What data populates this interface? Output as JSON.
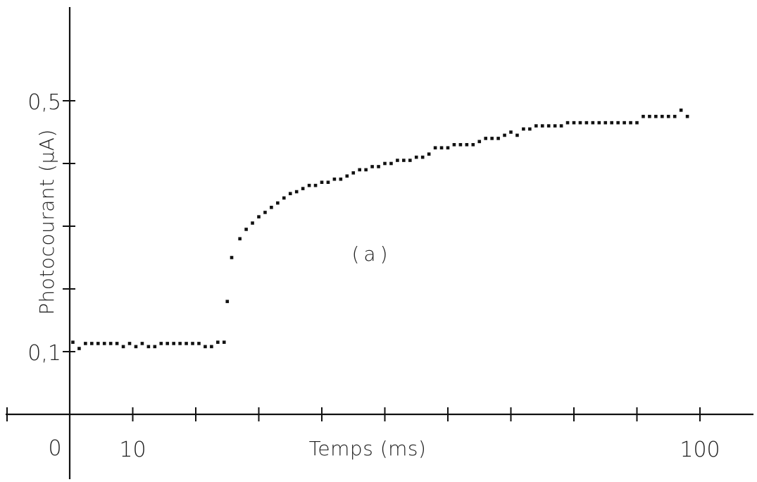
{
  "chart_data": {
    "type": "scatter",
    "xlabel": "Temps (ms)",
    "ylabel": "Photocourant (μA)",
    "annotation": "(a)",
    "origin_label": "0",
    "xlim": [
      0,
      108
    ],
    "ylim": [
      0.0,
      0.6
    ],
    "x_ticks": [
      10,
      20,
      30,
      40,
      50,
      60,
      70,
      80,
      90,
      100
    ],
    "x_tick_labels": [
      {
        "x": 10,
        "label": "10"
      },
      {
        "x": 100,
        "label": "100"
      }
    ],
    "y_ticks": [
      0.1,
      0.2,
      0.3,
      0.4,
      0.5
    ],
    "y_tick_labels": [
      {
        "y": 0.1,
        "label": "0,1"
      },
      {
        "y": 0.5,
        "label": "0,5"
      }
    ],
    "grid": false,
    "series": [
      {
        "color": "#111111",
        "points": [
          {
            "x": 0.5,
            "y": 0.115
          },
          {
            "x": 1.5,
            "y": 0.105
          },
          {
            "x": 2.5,
            "y": 0.113
          },
          {
            "x": 3.5,
            "y": 0.113
          },
          {
            "x": 4.5,
            "y": 0.113
          },
          {
            "x": 5.5,
            "y": 0.113
          },
          {
            "x": 6.5,
            "y": 0.113
          },
          {
            "x": 7.5,
            "y": 0.113
          },
          {
            "x": 8.5,
            "y": 0.108
          },
          {
            "x": 9.5,
            "y": 0.113
          },
          {
            "x": 10.5,
            "y": 0.108
          },
          {
            "x": 11.5,
            "y": 0.113
          },
          {
            "x": 12.5,
            "y": 0.108
          },
          {
            "x": 13.5,
            "y": 0.108
          },
          {
            "x": 14.5,
            "y": 0.113
          },
          {
            "x": 15.5,
            "y": 0.113
          },
          {
            "x": 16.5,
            "y": 0.113
          },
          {
            "x": 17.5,
            "y": 0.113
          },
          {
            "x": 18.5,
            "y": 0.113
          },
          {
            "x": 19.5,
            "y": 0.113
          },
          {
            "x": 20.5,
            "y": 0.113
          },
          {
            "x": 21.5,
            "y": 0.108
          },
          {
            "x": 22.5,
            "y": 0.108
          },
          {
            "x": 23.5,
            "y": 0.115
          },
          {
            "x": 24.5,
            "y": 0.115
          },
          {
            "x": 25.0,
            "y": 0.18
          },
          {
            "x": 25.7,
            "y": 0.25
          },
          {
            "x": 27.0,
            "y": 0.28
          },
          {
            "x": 28.0,
            "y": 0.295
          },
          {
            "x": 29.0,
            "y": 0.305
          },
          {
            "x": 30.0,
            "y": 0.315
          },
          {
            "x": 31.0,
            "y": 0.322
          },
          {
            "x": 32.0,
            "y": 0.33
          },
          {
            "x": 33.0,
            "y": 0.337
          },
          {
            "x": 34.0,
            "y": 0.345
          },
          {
            "x": 35.0,
            "y": 0.352
          },
          {
            "x": 36.0,
            "y": 0.355
          },
          {
            "x": 37.0,
            "y": 0.36
          },
          {
            "x": 38.0,
            "y": 0.365
          },
          {
            "x": 39.0,
            "y": 0.365
          },
          {
            "x": 40.0,
            "y": 0.37
          },
          {
            "x": 41.0,
            "y": 0.37
          },
          {
            "x": 42.0,
            "y": 0.375
          },
          {
            "x": 43.0,
            "y": 0.375
          },
          {
            "x": 44.0,
            "y": 0.38
          },
          {
            "x": 45.0,
            "y": 0.385
          },
          {
            "x": 46.0,
            "y": 0.39
          },
          {
            "x": 47.0,
            "y": 0.39
          },
          {
            "x": 48.0,
            "y": 0.395
          },
          {
            "x": 49.0,
            "y": 0.395
          },
          {
            "x": 50.0,
            "y": 0.4
          },
          {
            "x": 51.0,
            "y": 0.4
          },
          {
            "x": 52.0,
            "y": 0.405
          },
          {
            "x": 53.0,
            "y": 0.405
          },
          {
            "x": 54.0,
            "y": 0.405
          },
          {
            "x": 55.0,
            "y": 0.41
          },
          {
            "x": 56.0,
            "y": 0.41
          },
          {
            "x": 57.0,
            "y": 0.415
          },
          {
            "x": 58.0,
            "y": 0.425
          },
          {
            "x": 59.0,
            "y": 0.425
          },
          {
            "x": 60.0,
            "y": 0.425
          },
          {
            "x": 61.0,
            "y": 0.43
          },
          {
            "x": 62.0,
            "y": 0.43
          },
          {
            "x": 63.0,
            "y": 0.43
          },
          {
            "x": 64.0,
            "y": 0.43
          },
          {
            "x": 65.0,
            "y": 0.435
          },
          {
            "x": 66.0,
            "y": 0.44
          },
          {
            "x": 67.0,
            "y": 0.44
          },
          {
            "x": 68.0,
            "y": 0.44
          },
          {
            "x": 69.0,
            "y": 0.445
          },
          {
            "x": 70.0,
            "y": 0.45
          },
          {
            "x": 71.0,
            "y": 0.445
          },
          {
            "x": 72.0,
            "y": 0.455
          },
          {
            "x": 73.0,
            "y": 0.455
          },
          {
            "x": 74.0,
            "y": 0.46
          },
          {
            "x": 75.0,
            "y": 0.46
          },
          {
            "x": 76.0,
            "y": 0.46
          },
          {
            "x": 77.0,
            "y": 0.46
          },
          {
            "x": 78.0,
            "y": 0.46
          },
          {
            "x": 79.0,
            "y": 0.465
          },
          {
            "x": 80.0,
            "y": 0.465
          },
          {
            "x": 81.0,
            "y": 0.465
          },
          {
            "x": 82.0,
            "y": 0.465
          },
          {
            "x": 83.0,
            "y": 0.465
          },
          {
            "x": 84.0,
            "y": 0.465
          },
          {
            "x": 85.0,
            "y": 0.465
          },
          {
            "x": 86.0,
            "y": 0.465
          },
          {
            "x": 87.0,
            "y": 0.465
          },
          {
            "x": 88.0,
            "y": 0.465
          },
          {
            "x": 89.0,
            "y": 0.465
          },
          {
            "x": 90.0,
            "y": 0.465
          },
          {
            "x": 91.0,
            "y": 0.475
          },
          {
            "x": 92.0,
            "y": 0.475
          },
          {
            "x": 93.0,
            "y": 0.475
          },
          {
            "x": 94.0,
            "y": 0.475
          },
          {
            "x": 95.0,
            "y": 0.475
          },
          {
            "x": 96.0,
            "y": 0.475
          },
          {
            "x": 97.0,
            "y": 0.485
          },
          {
            "x": 98.0,
            "y": 0.475
          }
        ]
      }
    ]
  }
}
